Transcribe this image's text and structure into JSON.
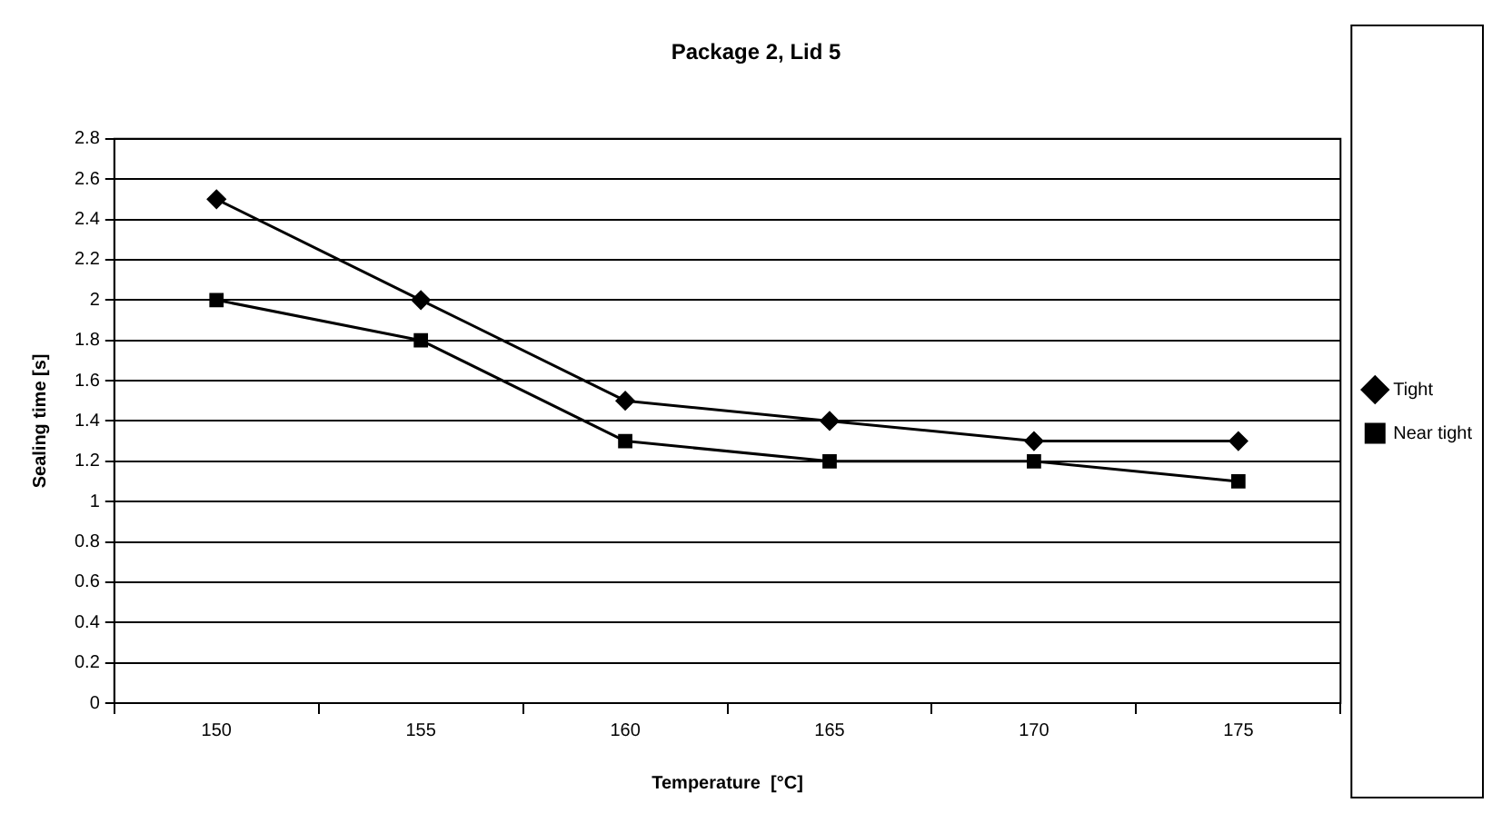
{
  "chart_data": {
    "type": "line",
    "title": "Package 2, Lid 5",
    "xlabel": "Temperature  [°C]",
    "ylabel": "Sealing time [s]",
    "categories": [
      "150",
      "155",
      "160",
      "165",
      "170",
      "175"
    ],
    "series": [
      {
        "name": "Tight",
        "color": "#000000",
        "marker": "diamond",
        "values": [
          2.5,
          2.0,
          1.5,
          1.4,
          1.3,
          1.3
        ]
      },
      {
        "name": "Near tight",
        "color": "#000000",
        "marker": "square",
        "values": [
          2.0,
          1.8,
          1.3,
          1.2,
          1.2,
          1.1
        ]
      }
    ],
    "ylim": [
      0,
      2.8
    ],
    "yticks": [
      0,
      0.2,
      0.4,
      0.6,
      0.8,
      1,
      1.2,
      1.4,
      1.6,
      1.8,
      2,
      2.2,
      2.4,
      2.6,
      2.8
    ],
    "grid": "y",
    "legend": "right",
    "line_style": "solid"
  }
}
